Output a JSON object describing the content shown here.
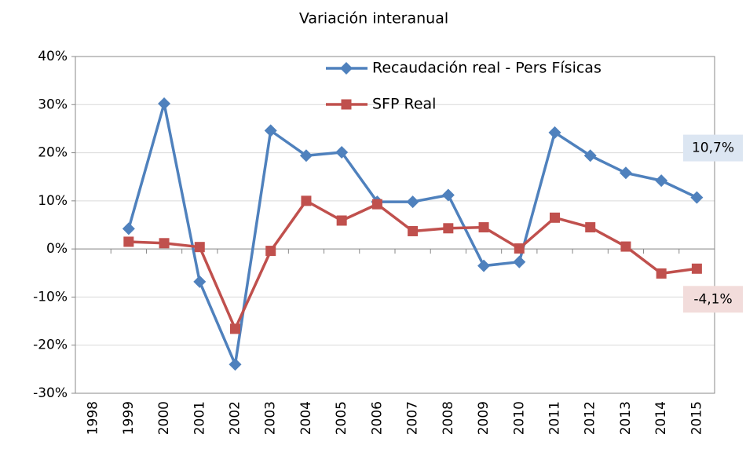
{
  "chart_data": {
    "type": "line",
    "title": "Variación interanual",
    "categories": [
      "1998",
      "1999",
      "2000",
      "2001",
      "2002",
      "2003",
      "2004",
      "2005",
      "2006",
      "2007",
      "2008",
      "2009",
      "2010",
      "2011",
      "2012",
      "2013",
      "2014",
      "2015"
    ],
    "series": [
      {
        "name": "Recaudación real - Pers Físicas",
        "color": "#4f81bd",
        "marker": "diamond",
        "values": [
          null,
          4.2,
          30.2,
          -6.8,
          -24.0,
          24.6,
          19.4,
          20.1,
          9.8,
          9.8,
          11.2,
          -3.5,
          -2.7,
          24.2,
          19.4,
          15.8,
          14.2,
          10.7
        ],
        "value_labels": [
          null,
          null,
          null,
          null,
          null,
          null,
          null,
          null,
          null,
          null,
          null,
          null,
          null,
          null,
          null,
          null,
          null,
          "10,7%"
        ],
        "label_color": "#dce6f2"
      },
      {
        "name": "SFP Real",
        "color": "#c0504d",
        "marker": "square",
        "values": [
          null,
          1.5,
          1.2,
          0.4,
          -16.6,
          -0.4,
          10.0,
          5.9,
          9.3,
          3.7,
          4.3,
          4.5,
          0.1,
          6.5,
          4.5,
          0.5,
          -5.1,
          -4.1
        ],
        "value_labels": [
          null,
          null,
          null,
          null,
          null,
          null,
          null,
          null,
          null,
          null,
          null,
          null,
          null,
          null,
          null,
          null,
          null,
          "-4,1%"
        ],
        "label_color": "#f2dcdb"
      }
    ],
    "ylim": [
      -30,
      40
    ],
    "yticks": [
      {
        "value": -30,
        "label": "-30%"
      },
      {
        "value": -20,
        "label": "-20%"
      },
      {
        "value": -10,
        "label": "-10%"
      },
      {
        "value": 0,
        "label": "0%"
      },
      {
        "value": 10,
        "label": "10%"
      },
      {
        "value": 20,
        "label": "20%"
      },
      {
        "value": 30,
        "label": "30%"
      },
      {
        "value": 40,
        "label": "40%"
      }
    ],
    "grid": true,
    "legend": "top"
  }
}
